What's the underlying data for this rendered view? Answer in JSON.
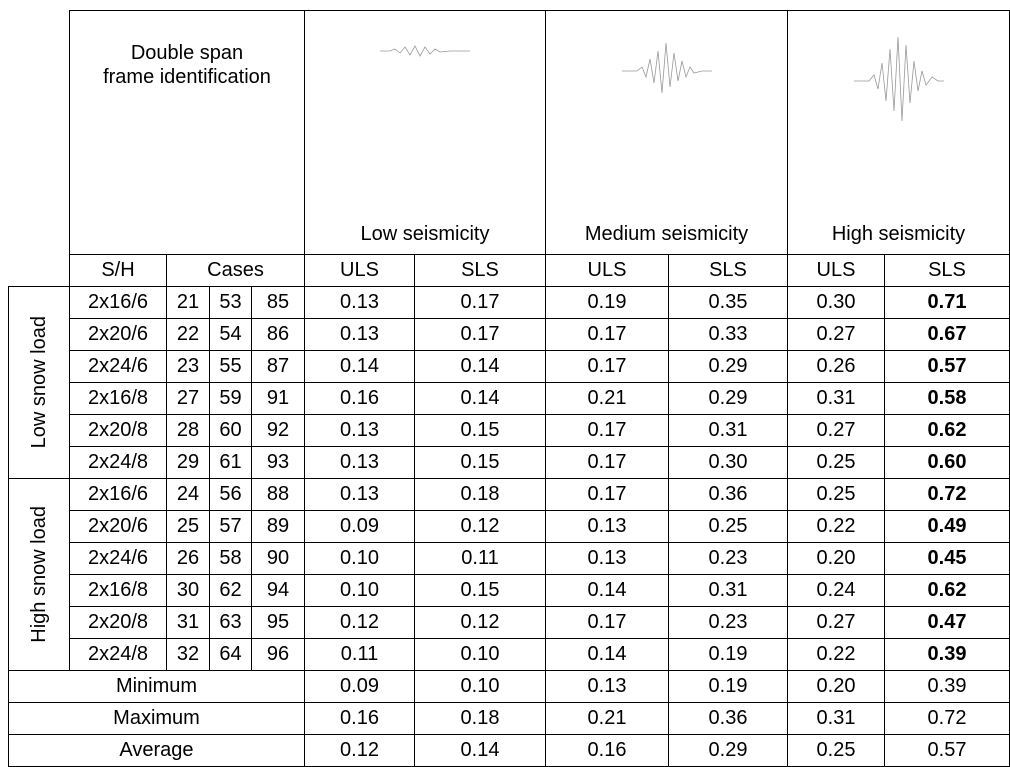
{
  "header": {
    "title_lines": [
      "Double span",
      "frame identification"
    ],
    "seismicity": [
      "Low seismicity",
      "Medium seismicity",
      "High seismicity"
    ],
    "subheaders": {
      "sh": "S/H",
      "cases": "Cases",
      "limits": [
        "ULS",
        "SLS",
        "ULS",
        "SLS",
        "ULS",
        "SLS"
      ]
    }
  },
  "groups": [
    {
      "label": "Low snow load",
      "rows": [
        {
          "sh": "2x16/6",
          "cases": [
            "21",
            "53",
            "85"
          ],
          "values": [
            "0.13",
            "0.17",
            "0.19",
            "0.35",
            "0.30",
            "0.71"
          ]
        },
        {
          "sh": "2x20/6",
          "cases": [
            "22",
            "54",
            "86"
          ],
          "values": [
            "0.13",
            "0.17",
            "0.17",
            "0.33",
            "0.27",
            "0.67"
          ]
        },
        {
          "sh": "2x24/6",
          "cases": [
            "23",
            "55",
            "87"
          ],
          "values": [
            "0.14",
            "0.14",
            "0.17",
            "0.29",
            "0.26",
            "0.57"
          ]
        },
        {
          "sh": "2x16/8",
          "cases": [
            "27",
            "59",
            "91"
          ],
          "values": [
            "0.16",
            "0.14",
            "0.21",
            "0.29",
            "0.31",
            "0.58"
          ]
        },
        {
          "sh": "2x20/8",
          "cases": [
            "28",
            "60",
            "92"
          ],
          "values": [
            "0.13",
            "0.15",
            "0.17",
            "0.31",
            "0.27",
            "0.62"
          ]
        },
        {
          "sh": "2x24/8",
          "cases": [
            "29",
            "61",
            "93"
          ],
          "values": [
            "0.13",
            "0.15",
            "0.17",
            "0.30",
            "0.25",
            "0.60"
          ]
        }
      ]
    },
    {
      "label": "High snow load",
      "rows": [
        {
          "sh": "2x16/6",
          "cases": [
            "24",
            "56",
            "88"
          ],
          "values": [
            "0.13",
            "0.18",
            "0.17",
            "0.36",
            "0.25",
            "0.72"
          ]
        },
        {
          "sh": "2x20/6",
          "cases": [
            "25",
            "57",
            "89"
          ],
          "values": [
            "0.09",
            "0.12",
            "0.13",
            "0.25",
            "0.22",
            "0.49"
          ]
        },
        {
          "sh": "2x24/6",
          "cases": [
            "26",
            "58",
            "90"
          ],
          "values": [
            "0.10",
            "0.11",
            "0.13",
            "0.23",
            "0.20",
            "0.45"
          ]
        },
        {
          "sh": "2x16/8",
          "cases": [
            "30",
            "62",
            "94"
          ],
          "values": [
            "0.10",
            "0.15",
            "0.14",
            "0.31",
            "0.24",
            "0.62"
          ]
        },
        {
          "sh": "2x20/8",
          "cases": [
            "31",
            "63",
            "95"
          ],
          "values": [
            "0.12",
            "0.12",
            "0.17",
            "0.23",
            "0.27",
            "0.47"
          ]
        },
        {
          "sh": "2x24/8",
          "cases": [
            "32",
            "64",
            "96"
          ],
          "values": [
            "0.11",
            "0.10",
            "0.14",
            "0.19",
            "0.22",
            "0.39"
          ]
        }
      ]
    }
  ],
  "summary": [
    {
      "label": "Minimum",
      "values": [
        "0.09",
        "0.10",
        "0.13",
        "0.19",
        "0.20",
        "0.39"
      ]
    },
    {
      "label": "Maximum",
      "values": [
        "0.16",
        "0.18",
        "0.21",
        "0.36",
        "0.31",
        "0.72"
      ]
    },
    {
      "label": "Average",
      "values": [
        "0.12",
        "0.14",
        "0.16",
        "0.29",
        "0.25",
        "0.57"
      ]
    }
  ]
}
